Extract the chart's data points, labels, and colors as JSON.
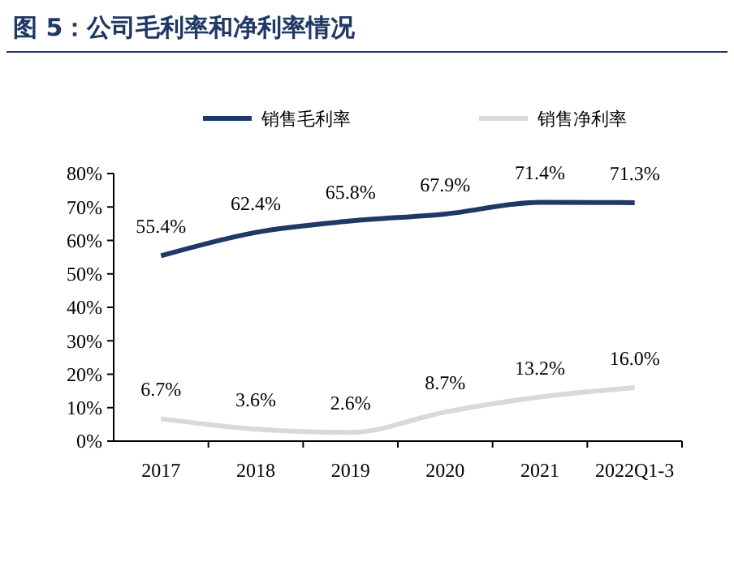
{
  "chart_data": {
    "type": "line",
    "title": "图 5：公司毛利率和净利率情况",
    "categories": [
      "2017",
      "2018",
      "2019",
      "2020",
      "2021",
      "2022Q1-3"
    ],
    "series": [
      {
        "name": "销售毛利率",
        "color": "#1f3864",
        "values": [
          55.4,
          62.4,
          65.8,
          67.9,
          71.4,
          71.3
        ],
        "value_labels": [
          "55.4%",
          "62.4%",
          "65.8%",
          "67.9%",
          "71.4%",
          "71.3%"
        ]
      },
      {
        "name": "销售净利率",
        "color": "#d9d9d9",
        "values": [
          6.7,
          3.6,
          2.6,
          8.7,
          13.2,
          16.0
        ],
        "value_labels": [
          "6.7%",
          "3.6%",
          "2.6%",
          "8.7%",
          "13.2%",
          "16.0%"
        ]
      }
    ],
    "ylim": [
      0,
      80
    ],
    "yticks": [
      {
        "value": 0,
        "label": "0%"
      },
      {
        "value": 10,
        "label": "10%"
      },
      {
        "value": 20,
        "label": "20%"
      },
      {
        "value": 30,
        "label": "30%"
      },
      {
        "value": 40,
        "label": "40%"
      },
      {
        "value": 50,
        "label": "50%"
      },
      {
        "value": 60,
        "label": "60%"
      },
      {
        "value": 70,
        "label": "70%"
      },
      {
        "value": 80,
        "label": "80%"
      }
    ],
    "grid": false,
    "legend": "top",
    "marker": "none",
    "line_style": "solid"
  }
}
